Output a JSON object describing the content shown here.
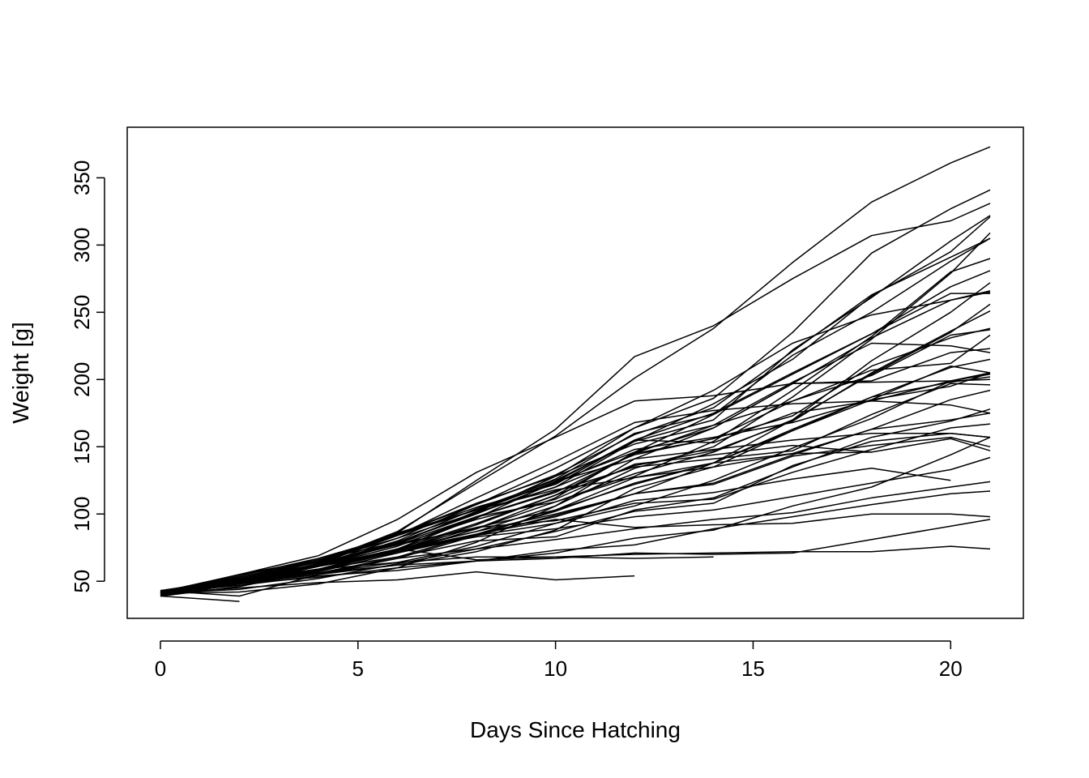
{
  "chart_data": {
    "type": "line",
    "title": "",
    "xlabel": "Days Since Hatching",
    "ylabel": "Weight [g]",
    "xlim": [
      -0.84,
      21.84
    ],
    "ylim": [
      22.4,
      387.6
    ],
    "xticks": [
      0,
      5,
      10,
      15,
      20
    ],
    "yticks": [
      50,
      100,
      150,
      200,
      250,
      300,
      350
    ],
    "grid": false,
    "legend": "none",
    "line_color": "#000000",
    "x": [
      0,
      2,
      4,
      6,
      8,
      10,
      12,
      14,
      16,
      18,
      20,
      21
    ],
    "series": [
      {
        "values": [
          42,
          51,
          59,
          64,
          76,
          93,
          106,
          125,
          149,
          171,
          199,
          205
        ]
      },
      {
        "values": [
          40,
          49,
          58,
          72,
          84,
          103,
          122,
          138,
          162,
          187,
          209,
          215
        ]
      },
      {
        "values": [
          43,
          39,
          55,
          67,
          84,
          99,
          115,
          138,
          163,
          187,
          198,
          202
        ]
      },
      {
        "values": [
          42,
          49,
          56,
          67,
          74,
          87,
          102,
          108,
          136,
          154,
          160,
          157
        ]
      },
      {
        "values": [
          41,
          42,
          48,
          60,
          79,
          106,
          141,
          164,
          197,
          199,
          220,
          223
        ]
      },
      {
        "values": [
          41,
          49,
          59,
          74,
          97,
          124,
          141,
          148,
          155,
          160,
          160,
          157
        ]
      },
      {
        "values": [
          41,
          49,
          57,
          71,
          89,
          112,
          146,
          174,
          218,
          250,
          288,
          305
        ]
      },
      {
        "values": [
          42,
          50,
          61,
          71,
          84,
          93,
          110,
          116,
          126,
          134,
          125,
          null
        ]
      },
      {
        "values": [
          42,
          51,
          59,
          68,
          85,
          96,
          90,
          92,
          93,
          100,
          100,
          98
        ]
      },
      {
        "values": [
          41,
          44,
          52,
          63,
          74,
          81,
          89,
          96,
          101,
          112,
          120,
          124
        ]
      },
      {
        "values": [
          43,
          51,
          63,
          84,
          112,
          139,
          168,
          177,
          182,
          184,
          181,
          175
        ]
      },
      {
        "values": [
          41,
          49,
          56,
          62,
          72,
          88,
          119,
          135,
          162,
          185,
          195,
          205
        ]
      },
      {
        "values": [
          41,
          48,
          53,
          60,
          65,
          67,
          71,
          70,
          71,
          81,
          91,
          96
        ]
      },
      {
        "values": [
          41,
          49,
          62,
          79,
          101,
          128,
          164,
          192,
          227,
          248,
          259,
          266
        ]
      },
      {
        "values": [
          41,
          49,
          56,
          64,
          68,
          68,
          67,
          68,
          null,
          null,
          null,
          null
        ]
      },
      {
        "values": [
          41,
          45,
          49,
          51,
          57,
          51,
          54,
          null,
          null,
          null,
          null,
          null
        ]
      },
      {
        "values": [
          42,
          51,
          61,
          72,
          83,
          89,
          98,
          103,
          113,
          123,
          133,
          142
        ]
      },
      {
        "values": [
          39,
          35,
          null,
          null,
          null,
          null,
          null,
          null,
          null,
          null,
          null,
          null
        ]
      },
      {
        "values": [
          43,
          48,
          55,
          62,
          65,
          71,
          82,
          88,
          106,
          120,
          144,
          157
        ]
      },
      {
        "values": [
          41,
          47,
          54,
          58,
          65,
          73,
          77,
          89,
          98,
          107,
          115,
          117
        ]
      },
      {
        "values": [
          40,
          50,
          62,
          86,
          125,
          163,
          217,
          240,
          275,
          307,
          318,
          331
        ]
      },
      {
        "values": [
          41,
          55,
          64,
          77,
          90,
          95,
          108,
          111,
          131,
          148,
          164,
          167
        ]
      },
      {
        "values": [
          43,
          52,
          61,
          73,
          90,
          103,
          127,
          135,
          145,
          163,
          170,
          175
        ]
      },
      {
        "values": [
          42,
          52,
          58,
          74,
          66,
          68,
          70,
          71,
          72,
          72,
          76,
          74
        ]
      },
      {
        "values": [
          40,
          49,
          62,
          78,
          102,
          124,
          146,
          164,
          197,
          231,
          259,
          265
        ]
      },
      {
        "values": [
          42,
          48,
          57,
          74,
          93,
          114,
          136,
          147,
          169,
          205,
          236,
          251
        ]
      },
      {
        "values": [
          39,
          46,
          58,
          73,
          87,
          100,
          115,
          123,
          144,
          163,
          185,
          192
        ]
      },
      {
        "values": [
          39,
          46,
          58,
          73,
          92,
          114,
          145,
          156,
          184,
          207,
          212,
          233
        ]
      },
      {
        "values": [
          39,
          48,
          59,
          74,
          87,
          106,
          134,
          150,
          187,
          230,
          279,
          309
        ]
      },
      {
        "values": [
          42,
          48,
          59,
          72,
          85,
          98,
          115,
          122,
          143,
          151,
          157,
          150
        ]
      },
      {
        "values": [
          42,
          53,
          62,
          73,
          85,
          102,
          123,
          138,
          170,
          204,
          235,
          256
        ]
      },
      {
        "values": [
          41,
          49,
          65,
          82,
          107,
          129,
          159,
          179,
          221,
          263,
          291,
          305
        ]
      },
      {
        "values": [
          39,
          50,
          63,
          77,
          96,
          111,
          137,
          144,
          151,
          146,
          156,
          147
        ]
      },
      {
        "values": [
          41,
          49,
          63,
          85,
          107,
          134,
          164,
          186,
          235,
          294,
          327,
          341
        ]
      },
      {
        "values": [
          41,
          53,
          64,
          87,
          123,
          158,
          201,
          238,
          287,
          332,
          361,
          373
        ]
      },
      {
        "values": [
          39,
          48,
          61,
          76,
          98,
          116,
          145,
          166,
          198,
          227,
          225,
          220
        ]
      },
      {
        "values": [
          41,
          48,
          56,
          68,
          80,
          83,
          103,
          112,
          135,
          157,
          169,
          178
        ]
      },
      {
        "values": [
          41,
          49,
          61,
          74,
          98,
          109,
          128,
          154,
          192,
          232,
          280,
          290
        ]
      },
      {
        "values": [
          42,
          50,
          61,
          78,
          89,
          109,
          130,
          146,
          170,
          214,
          250,
          272
        ]
      },
      {
        "values": [
          41,
          55,
          66,
          79,
          101,
          120,
          154,
          182,
          215,
          262,
          295,
          321
        ]
      },
      {
        "values": [
          42,
          51,
          66,
          85,
          103,
          124,
          155,
          153,
          175,
          184,
          199,
          204
        ]
      },
      {
        "values": [
          42,
          49,
          63,
          84,
          103,
          126,
          160,
          174,
          204,
          234,
          269,
          281
        ]
      },
      {
        "values": [
          42,
          55,
          69,
          96,
          131,
          157,
          184,
          188,
          197,
          198,
          199,
          200
        ]
      },
      {
        "values": [
          42,
          51,
          65,
          86,
          103,
          118,
          127,
          138,
          145,
          146,
          null,
          null
        ]
      },
      {
        "values": [
          41,
          50,
          61,
          78,
          98,
          117,
          135,
          141,
          147,
          174,
          197,
          196
        ]
      },
      {
        "values": [
          40,
          52,
          62,
          82,
          101,
          120,
          144,
          156,
          173,
          210,
          231,
          238
        ]
      },
      {
        "values": [
          41,
          53,
          66,
          79,
          100,
          123,
          148,
          157,
          168,
          185,
          210,
          205
        ]
      },
      {
        "values": [
          39,
          50,
          62,
          80,
          104,
          125,
          154,
          170,
          222,
          261,
          303,
          322
        ]
      },
      {
        "values": [
          40,
          53,
          64,
          85,
          108,
          128,
          152,
          166,
          184,
          203,
          233,
          237
        ]
      },
      {
        "values": [
          41,
          54,
          67,
          84,
          105,
          122,
          155,
          175,
          205,
          234,
          264,
          264
        ]
      }
    ]
  }
}
